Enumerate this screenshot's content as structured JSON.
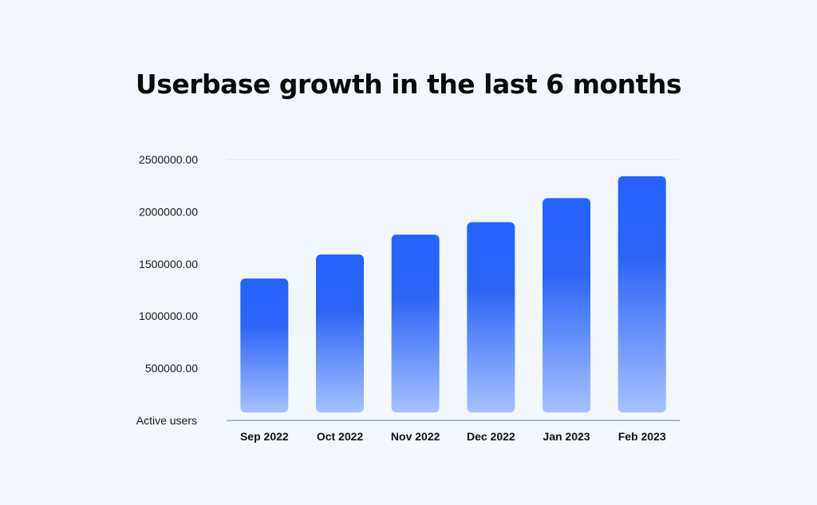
{
  "colors": {
    "background": "#f2f7fd",
    "bar_top": "#2563ff",
    "bar_mid": "#2c64f6",
    "bar_bottom": "#a6c1ff",
    "gridline": "#dde3ea",
    "axis": "#8a94a3"
  },
  "chart_data": {
    "type": "bar",
    "title": "Userbase growth in the last 6 months",
    "xlabel": "",
    "ylabel": "Active users",
    "categories": [
      "Sep 2022",
      "Oct 2022",
      "Nov 2022",
      "Dec 2022",
      "Jan 2023",
      "Feb 2023"
    ],
    "series": [
      {
        "values": [
          1360000,
          1590000,
          1780000,
          1900000,
          2130000,
          2340000
        ]
      }
    ],
    "ylim": [
      0,
      2500000
    ],
    "yticks": [
      500000,
      1000000,
      1500000,
      2000000,
      2500000
    ],
    "ytick_labels": [
      "500000.00",
      "1000000.00",
      "1500000.00",
      "2000000.00",
      "2500000.00"
    ],
    "grid": "top-line-only",
    "legend": "none"
  }
}
